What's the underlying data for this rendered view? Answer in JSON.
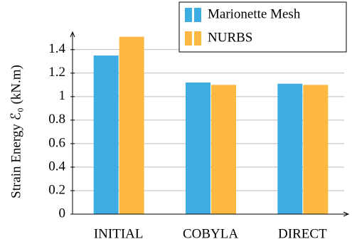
{
  "chart_data": {
    "type": "bar",
    "y_label": "Strain Energy ℰ₀ (kN.m)",
    "categories": [
      "INITIAL",
      "COBYLA",
      "DIRECT"
    ],
    "series": [
      {
        "name": "Marionette Mesh",
        "color": "#3eaee2",
        "values": [
          1.35,
          1.12,
          1.11
        ]
      },
      {
        "name": "NURBS",
        "color": "#fdb843",
        "values": [
          1.51,
          1.1,
          1.1
        ]
      }
    ],
    "ylim": [
      0,
      1.55
    ],
    "yticks": [
      0,
      0.2,
      0.4,
      0.6,
      0.8,
      1,
      1.2,
      1.4
    ],
    "grid": true,
    "legend": "top-right"
  }
}
